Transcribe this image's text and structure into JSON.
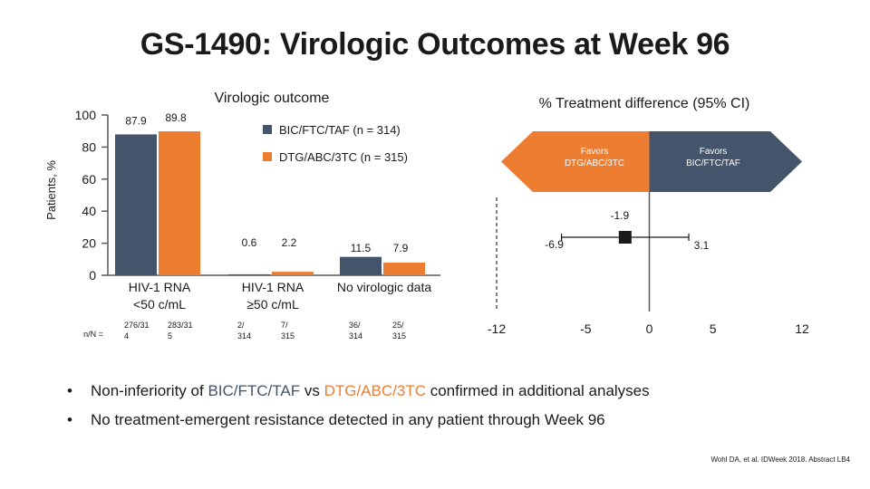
{
  "title": "GS-1490: Virologic Outcomes at Week 96",
  "colors": {
    "bic": "#44546a",
    "dtg": "#ed7d31",
    "axis": "#595959"
  },
  "chart_data": [
    {
      "type": "bar",
      "title": "Virologic outcome",
      "ylabel": "Patients, %",
      "ylim": [
        0,
        100
      ],
      "yticks": [
        0,
        20,
        40,
        60,
        80,
        100
      ],
      "categories": [
        {
          "line1": "HIV-1 RNA",
          "line2": "<50 c/mL"
        },
        {
          "line1": "HIV-1 RNA",
          "line2": "≥50 c/mL"
        },
        {
          "line1": "No virologic data",
          "line2": ""
        }
      ],
      "series": [
        {
          "name": "BIC/FTC/TAF (n = 314)",
          "values": [
            87.9,
            0.6,
            11.5
          ],
          "labels": [
            "87.9",
            "0.6",
            "11.5"
          ],
          "nN": [
            [
              "276/31",
              "4"
            ],
            [
              "2/",
              "314"
            ],
            [
              "36/",
              "314"
            ]
          ]
        },
        {
          "name": "DTG/ABC/3TC (n = 315)",
          "values": [
            89.8,
            2.2,
            7.9
          ],
          "labels": [
            "89.8",
            "2.2",
            "7.9"
          ],
          "nN": [
            [
              "283/31",
              "5"
            ],
            [
              "7/",
              "315"
            ],
            [
              "25/",
              "315"
            ]
          ]
        }
      ],
      "nN_label": "n/N ="
    },
    {
      "type": "scatter",
      "title": "% Treatment difference (95% CI)",
      "xlim": [
        -12,
        12
      ],
      "xticks": [
        -12,
        -5,
        0,
        5,
        12
      ],
      "estimate": -1.9,
      "ci": [
        -6.9,
        3.1
      ],
      "labels": {
        "estimate": "-1.9",
        "lower": "-6.9",
        "upper": "3.1"
      },
      "favors_left": [
        "Favors",
        "DTG/ABC/3TC"
      ],
      "favors_right": [
        "Favors",
        "BIC/FTC/TAF"
      ]
    }
  ],
  "bullets": {
    "b1": {
      "dot": "•",
      "pre": "Non-inferiority of ",
      "bic": "BIC/FTC/TAF",
      "mid": " vs ",
      "dtg": "DTG/ABC/3TC",
      "post": " confirmed in additional analyses"
    },
    "b2": {
      "dot": "•",
      "text": "No treatment-emergent resistance detected in any patient through Week 96"
    }
  },
  "citation": "Wohl DA, et al. IDWeek 2018. Abstract LB4"
}
